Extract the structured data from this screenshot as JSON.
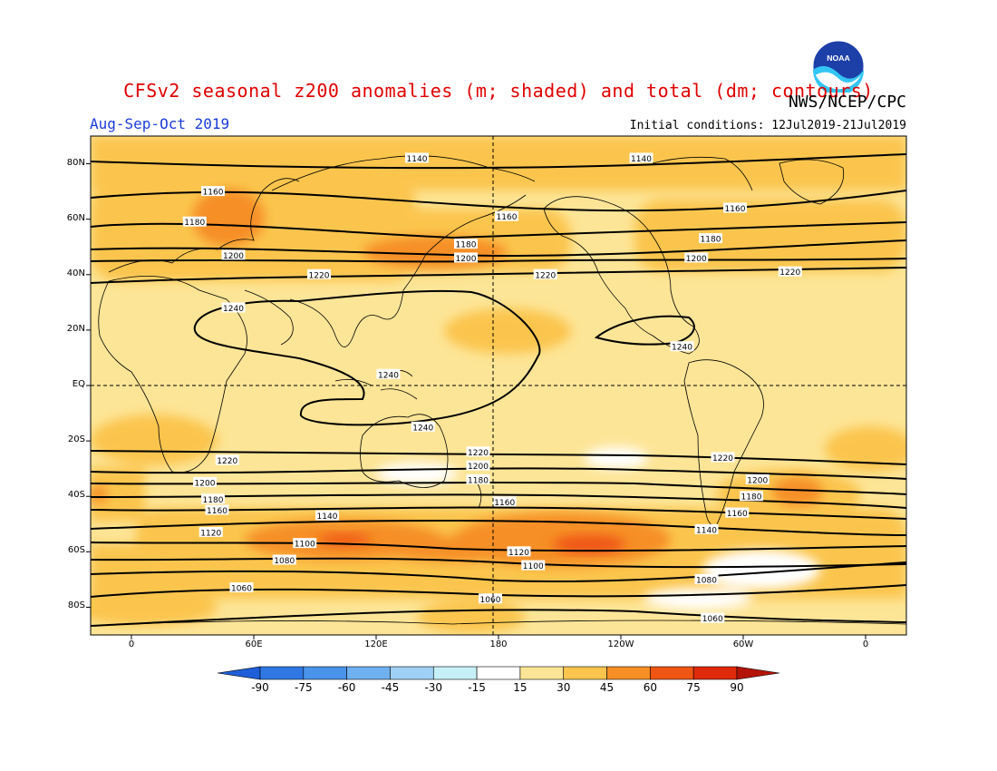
{
  "header": {
    "title": "CFSv2 seasonal z200 anomalies (m; shaded) and total (dm; contours)",
    "organization": "NWS/NCEP/CPC",
    "period": "Aug-Sep-Oct 2019",
    "initial_conditions": "Initial conditions: 12Jul2019-21Jul2019",
    "logo_text": "NOAA"
  },
  "axes": {
    "lat_labels": [
      "80N",
      "60N",
      "40N",
      "20N",
      "EQ",
      "20S",
      "40S",
      "60S",
      "80S"
    ],
    "lon_labels": [
      "0",
      "60E",
      "120E",
      "180",
      "120W",
      "60W",
      "0"
    ],
    "lat_range": [
      -90,
      90
    ],
    "lon_range": [
      -20,
      380
    ]
  },
  "colorbar": {
    "ticks": [
      "-90",
      "-75",
      "-60",
      "-45",
      "-30",
      "-15",
      "15",
      "30",
      "45",
      "60",
      "75",
      "90"
    ],
    "colors": [
      "#1e5fd9",
      "#2f78e3",
      "#4a93ea",
      "#6fb0f0",
      "#9fd0f5",
      "#c6f0f7",
      "#ffffff",
      "#fde597",
      "#fbc54e",
      "#f68f25",
      "#ef5513",
      "#df2a0c",
      "#b41408"
    ]
  },
  "contour_labels": [
    {
      "text": "1140",
      "lon": 140,
      "lat": 82
    },
    {
      "text": "1140",
      "lon": 250,
      "lat": 82
    },
    {
      "text": "1160",
      "lon": 40,
      "lat": 70
    },
    {
      "text": "1160",
      "lon": 184,
      "lat": 61
    },
    {
      "text": "1160",
      "lon": 296,
      "lat": 64
    },
    {
      "text": "1180",
      "lon": 31,
      "lat": 59
    },
    {
      "text": "1180",
      "lon": 164,
      "lat": 51
    },
    {
      "text": "1180",
      "lon": 284,
      "lat": 53
    },
    {
      "text": "1200",
      "lon": 50,
      "lat": 47
    },
    {
      "text": "1200",
      "lon": 164,
      "lat": 46
    },
    {
      "text": "1200",
      "lon": 277,
      "lat": 46
    },
    {
      "text": "1220",
      "lon": 92,
      "lat": 40
    },
    {
      "text": "1220",
      "lon": 203,
      "lat": 40
    },
    {
      "text": "1220",
      "lon": 323,
      "lat": 41
    },
    {
      "text": "1240",
      "lon": 50,
      "lat": 28
    },
    {
      "text": "1240",
      "lon": 126,
      "lat": 4
    },
    {
      "text": "1240",
      "lon": 270,
      "lat": 14
    },
    {
      "text": "1240",
      "lon": 143,
      "lat": -15
    },
    {
      "text": "1220",
      "lon": 47,
      "lat": -27
    },
    {
      "text": "1220",
      "lon": 170,
      "lat": -24
    },
    {
      "text": "1220",
      "lon": 290,
      "lat": -26
    },
    {
      "text": "1200",
      "lon": 36,
      "lat": -35
    },
    {
      "text": "1200",
      "lon": 170,
      "lat": -29
    },
    {
      "text": "1200",
      "lon": 307,
      "lat": -34
    },
    {
      "text": "1180",
      "lon": 40,
      "lat": -41
    },
    {
      "text": "1180",
      "lon": 170,
      "lat": -34
    },
    {
      "text": "1180",
      "lon": 304,
      "lat": -40
    },
    {
      "text": "1160",
      "lon": 42,
      "lat": -45
    },
    {
      "text": "1160",
      "lon": 183,
      "lat": -42
    },
    {
      "text": "1160",
      "lon": 297,
      "lat": -46
    },
    {
      "text": "1140",
      "lon": 96,
      "lat": -47
    },
    {
      "text": "1140",
      "lon": 282,
      "lat": -52
    },
    {
      "text": "1120",
      "lon": 39,
      "lat": -53
    },
    {
      "text": "1120",
      "lon": 190,
      "lat": -60
    },
    {
      "text": "1100",
      "lon": 85,
      "lat": -57
    },
    {
      "text": "1100",
      "lon": 197,
      "lat": -65
    },
    {
      "text": "1080",
      "lon": 75,
      "lat": -63
    },
    {
      "text": "1080",
      "lon": 282,
      "lat": -70
    },
    {
      "text": "1060",
      "lon": 54,
      "lat": -73
    },
    {
      "text": "1060",
      "lon": 176,
      "lat": -77
    },
    {
      "text": "1060",
      "lon": 285,
      "lat": -84
    }
  ]
}
